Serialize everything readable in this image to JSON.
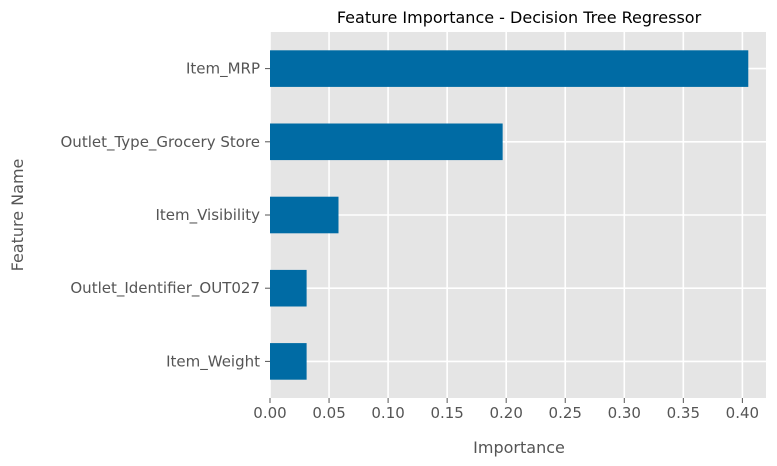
{
  "chart_data": {
    "type": "bar",
    "orientation": "horizontal",
    "title": "Feature Importance - Decision Tree Regressor",
    "xlabel": "Importance",
    "ylabel": "Feature Name",
    "categories": [
      "Item_MRP",
      "Outlet_Type_Grocery Store",
      "Item_Visibility",
      "Outlet_Identifier_OUT027",
      "Item_Weight"
    ],
    "values": [
      0.405,
      0.197,
      0.058,
      0.031,
      0.031
    ],
    "xlim": [
      0,
      0.42
    ],
    "xticks": [
      "0.00",
      "0.05",
      "0.10",
      "0.15",
      "0.20",
      "0.25",
      "0.30",
      "0.35",
      "0.40"
    ],
    "grid": true,
    "bar_color": "#006BA4",
    "plot_background": "#E5E5E5",
    "grid_color": "#FFFFFF",
    "legend": "none"
  }
}
